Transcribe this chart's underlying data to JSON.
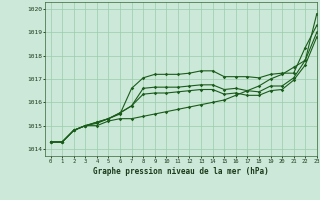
{
  "title": "Graphe pression niveau de la mer (hPa)",
  "background_color": "#cce8d8",
  "grid_color": "#99ccaa",
  "line_color": "#1a5c1a",
  "xlim": [
    -0.5,
    23
  ],
  "ylim": [
    1013.7,
    1020.3
  ],
  "yticks": [
    1014,
    1015,
    1016,
    1017,
    1018,
    1019,
    1020
  ],
  "xticks": [
    0,
    1,
    2,
    3,
    4,
    5,
    6,
    7,
    8,
    9,
    10,
    11,
    12,
    13,
    14,
    15,
    16,
    17,
    18,
    19,
    20,
    21,
    22,
    23
  ],
  "hours": [
    0,
    1,
    2,
    3,
    4,
    5,
    6,
    7,
    8,
    9,
    10,
    11,
    12,
    13,
    14,
    15,
    16,
    17,
    18,
    19,
    20,
    21,
    22,
    23
  ],
  "series": [
    [
      1014.3,
      1014.3,
      1014.8,
      1015.0,
      1015.0,
      1015.2,
      1015.3,
      1015.3,
      1015.4,
      1015.5,
      1015.6,
      1015.7,
      1015.8,
      1015.9,
      1016.0,
      1016.1,
      1016.3,
      1016.5,
      1016.7,
      1017.0,
      1017.2,
      1017.5,
      1017.8,
      1019.8
    ],
    [
      1014.3,
      1014.3,
      1014.8,
      1015.0,
      1015.1,
      1015.3,
      1015.5,
      1016.6,
      1017.05,
      1017.2,
      1017.2,
      1017.2,
      1017.25,
      1017.35,
      1017.35,
      1017.1,
      1017.1,
      1017.1,
      1017.05,
      1017.2,
      1017.25,
      1017.25,
      1018.35,
      1019.3
    ],
    [
      1014.3,
      1014.3,
      1014.8,
      1015.0,
      1015.15,
      1015.3,
      1015.55,
      1015.85,
      1016.6,
      1016.65,
      1016.65,
      1016.65,
      1016.7,
      1016.75,
      1016.75,
      1016.55,
      1016.6,
      1016.5,
      1016.45,
      1016.7,
      1016.7,
      1017.05,
      1017.8,
      1019.0
    ],
    [
      1014.3,
      1014.3,
      1014.8,
      1015.0,
      1015.15,
      1015.3,
      1015.55,
      1015.85,
      1016.35,
      1016.4,
      1016.4,
      1016.45,
      1016.5,
      1016.55,
      1016.55,
      1016.35,
      1016.4,
      1016.3,
      1016.3,
      1016.5,
      1016.55,
      1016.95,
      1017.6,
      1018.8
    ]
  ]
}
